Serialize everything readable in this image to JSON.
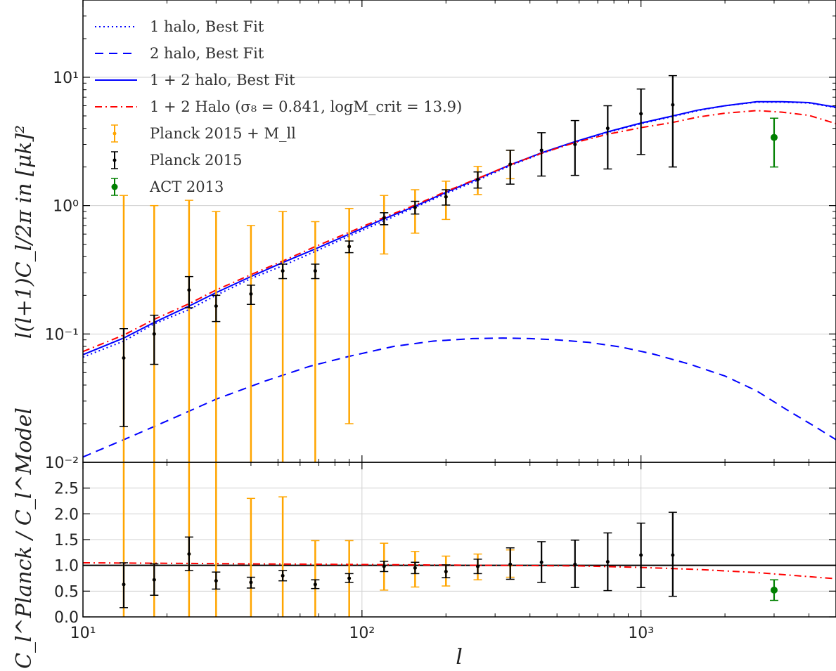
{
  "chart_data": [
    {
      "panel": "main",
      "type": "line",
      "xscale": "log",
      "yscale": "log",
      "xlim": [
        10,
        5000
      ],
      "ylim": [
        0.01,
        40
      ],
      "ylabel": "l(l+1)C_l/2π in [μk]²",
      "grid": true,
      "legend_placement": "top-left",
      "y_tick_labels": [
        "10⁻²",
        "10⁻¹",
        "10⁰",
        "10¹"
      ],
      "y_tick_values": [
        0.01,
        0.1,
        1,
        10
      ],
      "series": [
        {
          "name": "1 halo, Best Fit",
          "style": "dotted",
          "color": "#0000ff",
          "x": [
            10,
            14,
            18,
            24,
            30,
            40,
            52,
            68,
            90,
            120,
            155,
            200,
            260,
            340,
            440,
            580,
            760,
            1000,
            1300,
            1600,
            2000,
            2600,
            3200,
            4000,
            5000
          ],
          "y": [
            0.066,
            0.088,
            0.12,
            0.155,
            0.2,
            0.27,
            0.34,
            0.44,
            0.58,
            0.76,
            0.97,
            1.24,
            1.58,
            2.05,
            2.55,
            3.12,
            3.72,
            4.35,
            4.95,
            5.5,
            6.0,
            6.4,
            6.4,
            6.3,
            5.8
          ]
        },
        {
          "name": "2 halo, Best Fit",
          "style": "dashed",
          "color": "#0000ff",
          "x": [
            10,
            14,
            20,
            30,
            45,
            65,
            90,
            130,
            180,
            250,
            320,
            400,
            500,
            650,
            850,
            1100,
            1500,
            2000,
            2600,
            3300,
            4200,
            5000
          ],
          "y": [
            0.011,
            0.015,
            0.021,
            0.031,
            0.043,
            0.056,
            0.067,
            0.08,
            0.088,
            0.092,
            0.093,
            0.092,
            0.09,
            0.086,
            0.079,
            0.07,
            0.058,
            0.047,
            0.036,
            0.026,
            0.019,
            0.015
          ]
        },
        {
          "name": "1 + 2 halo, Best Fit",
          "style": "solid",
          "color": "#0000ff",
          "x": [
            10,
            14,
            18,
            24,
            30,
            40,
            52,
            68,
            90,
            120,
            155,
            200,
            260,
            340,
            440,
            580,
            760,
            1000,
            1300,
            1600,
            2000,
            2600,
            3200,
            4000,
            5000
          ],
          "y": [
            0.069,
            0.093,
            0.123,
            0.165,
            0.21,
            0.28,
            0.36,
            0.46,
            0.6,
            0.79,
            0.99,
            1.27,
            1.62,
            2.08,
            2.58,
            3.15,
            3.76,
            4.4,
            5.0,
            5.55,
            6.0,
            6.45,
            6.45,
            6.35,
            5.85
          ]
        },
        {
          "name": "1 + 2 Halo (σ₈ = 0.841, logM_crit = 13.9)",
          "style": "dashdot",
          "color": "#ff0000",
          "x": [
            10,
            14,
            18,
            24,
            30,
            40,
            52,
            68,
            90,
            120,
            155,
            200,
            260,
            340,
            440,
            580,
            760,
            1000,
            1300,
            1600,
            2000,
            2600,
            3200,
            4000,
            5000
          ],
          "y": [
            0.073,
            0.098,
            0.13,
            0.172,
            0.22,
            0.29,
            0.37,
            0.48,
            0.62,
            0.81,
            1.01,
            1.29,
            1.63,
            2.08,
            2.56,
            3.1,
            3.6,
            4.05,
            4.45,
            4.9,
            5.25,
            5.5,
            5.35,
            5.05,
            4.35
          ]
        }
      ],
      "errorbar_series": [
        {
          "name": "Planck 2015 + M_ll",
          "color": "#ffa500",
          "x": [
            14,
            18,
            24,
            30,
            40,
            52,
            68,
            90,
            120,
            155,
            200,
            260,
            340
          ],
          "y": [
            0.065,
            0.1,
            0.22,
            0.165,
            0.205,
            0.31,
            0.31,
            0.48,
            0.8,
            0.97,
            1.17,
            1.6,
            2.1
          ],
          "y_low": [
            0.01,
            0.01,
            0.01,
            0.01,
            0.01,
            0.01,
            0.01,
            0.02,
            0.42,
            0.61,
            0.78,
            1.22,
            1.62
          ],
          "y_high": [
            1.2,
            1.0,
            1.1,
            0.9,
            0.7,
            0.9,
            0.75,
            0.95,
            1.2,
            1.33,
            1.55,
            2.02,
            2.7
          ]
        },
        {
          "name": "Planck 2015",
          "color": "#000000",
          "x": [
            14,
            18,
            24,
            30,
            40,
            52,
            68,
            90,
            120,
            155,
            200,
            260,
            340,
            440,
            580,
            760,
            1000,
            1300
          ],
          "y": [
            0.065,
            0.1,
            0.22,
            0.165,
            0.205,
            0.31,
            0.31,
            0.48,
            0.8,
            0.97,
            1.17,
            1.6,
            2.1,
            2.7,
            3.0,
            4.0,
            5.2,
            6.1
          ],
          "y_low": [
            0.019,
            0.058,
            0.16,
            0.125,
            0.17,
            0.27,
            0.27,
            0.43,
            0.71,
            0.86,
            1.01,
            1.37,
            1.47,
            1.7,
            1.72,
            1.93,
            2.5,
            2.0
          ],
          "y_high": [
            0.11,
            0.14,
            0.28,
            0.2,
            0.24,
            0.35,
            0.35,
            0.53,
            0.88,
            1.08,
            1.33,
            1.83,
            2.7,
            3.7,
            4.6,
            6.0,
            8.1,
            10.3
          ]
        },
        {
          "name": "ACT 2013",
          "color": "#008000",
          "x": [
            3000
          ],
          "y": [
            3.4
          ],
          "y_low": [
            2.0
          ],
          "y_high": [
            4.8
          ]
        }
      ]
    },
    {
      "panel": "ratio",
      "type": "line",
      "xscale": "log",
      "xlim": [
        10,
        5000
      ],
      "ylim": [
        0,
        3
      ],
      "xlabel": "l",
      "ylabel": "C_l^Planck / C_l^Model",
      "grid": true,
      "x_tick_labels": [
        "10¹",
        "10²",
        "10³"
      ],
      "x_tick_values": [
        10,
        100,
        1000
      ],
      "y_tick_labels": [
        "0.0",
        "0.5",
        "1.0",
        "1.5",
        "2.0",
        "2.5"
      ],
      "y_tick_values": [
        0,
        0.5,
        1.0,
        1.5,
        2.0,
        2.5
      ],
      "reference_line": 1.0,
      "series": [
        {
          "style": "dashdot",
          "color": "#ff0000",
          "x": [
            10,
            20,
            40,
            80,
            150,
            300,
            600,
            1000,
            1600,
            2600,
            3600,
            5000
          ],
          "y": [
            1.05,
            1.04,
            1.03,
            1.02,
            1.01,
            1.0,
            0.99,
            0.96,
            0.92,
            0.86,
            0.8,
            0.74
          ]
        }
      ],
      "errorbar_series": [
        {
          "name": "Planck 2015 + M_ll",
          "color": "#ffa500",
          "x": [
            14,
            18,
            24,
            30,
            40,
            52,
            68,
            90,
            120,
            155,
            200,
            260,
            340
          ],
          "y": [
            0.63,
            0.72,
            1.22,
            0.7,
            0.67,
            0.8,
            0.63,
            0.75,
            0.98,
            0.95,
            0.88,
            0.98,
            1.0
          ],
          "y_low": [
            0.0,
            0.0,
            0.0,
            0.0,
            0.0,
            0.0,
            0.0,
            0.0,
            0.52,
            0.58,
            0.6,
            0.72,
            0.77
          ],
          "y_high": [
            3.0,
            3.0,
            3.0,
            3.0,
            2.3,
            2.33,
            1.48,
            1.48,
            1.43,
            1.27,
            1.18,
            1.22,
            1.3
          ]
        },
        {
          "name": "Planck 2015",
          "color": "#000000",
          "x": [
            14,
            18,
            24,
            30,
            40,
            52,
            68,
            90,
            120,
            155,
            200,
            260,
            340,
            440,
            580,
            760,
            1000,
            1300
          ],
          "y": [
            0.63,
            0.72,
            1.22,
            0.7,
            0.67,
            0.8,
            0.63,
            0.75,
            0.98,
            0.95,
            0.88,
            0.98,
            1.02,
            1.06,
            1.02,
            1.07,
            1.2,
            1.2
          ],
          "y_low": [
            0.18,
            0.42,
            0.9,
            0.54,
            0.56,
            0.7,
            0.55,
            0.67,
            0.88,
            0.84,
            0.76,
            0.84,
            0.73,
            0.67,
            0.57,
            0.51,
            0.57,
            0.4
          ],
          "y_high": [
            1.05,
            1.03,
            1.55,
            0.87,
            0.77,
            0.9,
            0.72,
            0.84,
            1.08,
            1.06,
            1.01,
            1.12,
            1.34,
            1.46,
            1.49,
            1.63,
            1.82,
            2.03
          ]
        },
        {
          "name": "ACT 2013",
          "color": "#008000",
          "x": [
            3000
          ],
          "y": [
            0.52
          ],
          "y_low": [
            0.32
          ],
          "y_high": [
            0.72
          ]
        }
      ]
    }
  ]
}
